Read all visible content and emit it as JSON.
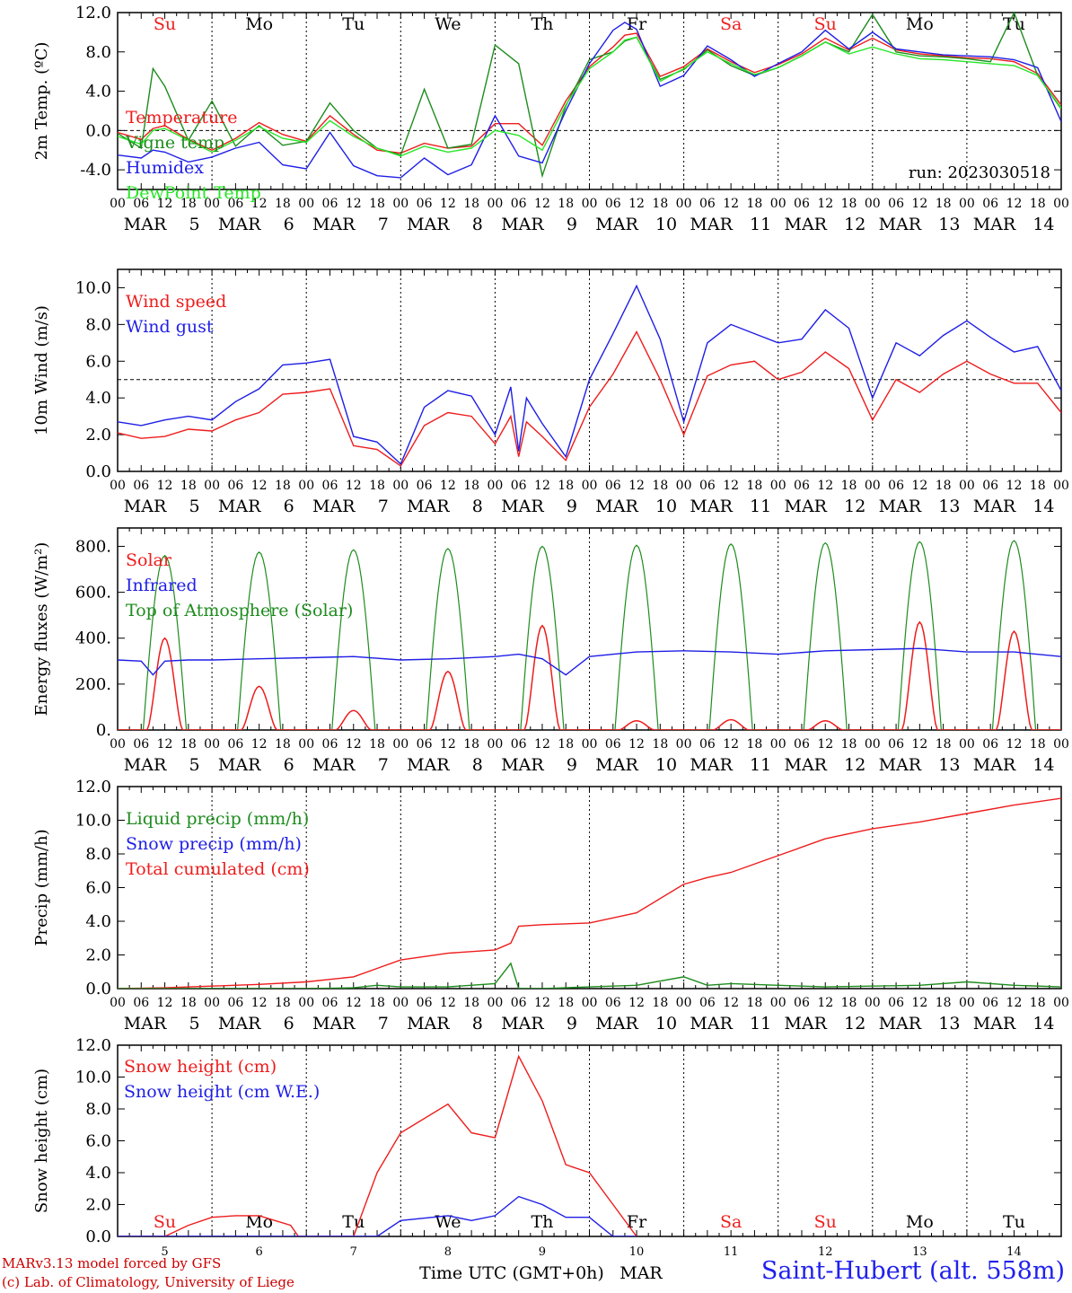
{
  "chart_data": [
    {
      "type": "line",
      "ylabel": "2m Temp. (ºC)",
      "ylim": [
        -6,
        12
      ],
      "yticks": [
        "-4.0",
        "0.0",
        "4.0",
        "8.0",
        "12.0"
      ],
      "hline": 0,
      "day_names": [
        "Su",
        "Mo",
        "Tu",
        "We",
        "Th",
        "Fr",
        "Sa",
        "Su",
        "Mo",
        "Tu"
      ],
      "day_colors": [
        "#ee2020",
        "#000000",
        "#000000",
        "#000000",
        "#000000",
        "#000000",
        "#ee2020",
        "#ee2020",
        "#000000",
        "#000000"
      ],
      "legend": [
        "Temperature",
        "Vigne temp",
        "Humidex",
        "DewPoint Temp"
      ],
      "run_label": "run: 2023030518",
      "x_hours": [
        0,
        6,
        9,
        12,
        18,
        24,
        30,
        36,
        42,
        48,
        54,
        60,
        66,
        72,
        78,
        84,
        90,
        96,
        102,
        108,
        114,
        120,
        126,
        129,
        132,
        138,
        144,
        150,
        156,
        162,
        168,
        174,
        180,
        186,
        192,
        198,
        204,
        210,
        216,
        222,
        228,
        234,
        240
      ],
      "series": [
        {
          "name": "Temperature",
          "color": "#ee1c1c",
          "values": [
            -0.2,
            -0.9,
            0.2,
            0.5,
            -0.9,
            -2.0,
            -0.8,
            0.8,
            -0.4,
            -1.1,
            1.5,
            -0.4,
            -2.0,
            -2.3,
            -1.3,
            -1.8,
            -1.6,
            0.7,
            0.7,
            -1.5,
            3.0,
            6.5,
            8.5,
            9.7,
            9.9,
            5.5,
            6.5,
            8.3,
            7.0,
            5.9,
            6.7,
            7.8,
            9.4,
            8.2,
            9.4,
            8.2,
            7.8,
            7.6,
            7.4,
            7.3,
            7.0,
            5.8,
            2.6
          ]
        },
        {
          "name": "Vigne temp",
          "color": "#1e8c1e",
          "values": [
            -0.3,
            -1.8,
            6.3,
            4.5,
            -1.0,
            3.0,
            -1.6,
            0.5,
            -1.5,
            -1.1,
            2.8,
            0.0,
            -1.8,
            -2.5,
            4.2,
            -1.8,
            -1.4,
            8.7,
            6.8,
            -4.6,
            2.5,
            7.2,
            8.0,
            9.1,
            9.5,
            5.2,
            6.2,
            8.2,
            6.6,
            5.6,
            6.4,
            7.6,
            9.0,
            8.0,
            11.8,
            8.0,
            7.6,
            7.5,
            7.3,
            7.0,
            12.0,
            5.6,
            2.2
          ]
        },
        {
          "name": "Humidex",
          "color": "#1e1ee6",
          "values": [
            -2.5,
            -2.8,
            -2.0,
            -2.2,
            -3.2,
            -2.7,
            -1.8,
            -1.2,
            -3.5,
            -3.9,
            -0.2,
            -3.6,
            -4.6,
            -4.8,
            -2.8,
            -4.5,
            -3.5,
            1.5,
            -2.6,
            -3.3,
            2.0,
            6.8,
            10.2,
            11.0,
            10.3,
            4.5,
            5.6,
            8.6,
            7.2,
            5.5,
            6.8,
            8.0,
            10.2,
            8.3,
            10.0,
            8.3,
            8.0,
            7.7,
            7.6,
            7.5,
            7.2,
            6.4,
            0.9
          ]
        },
        {
          "name": "DewPoint Temp",
          "color": "#26e626",
          "values": [
            -0.6,
            -1.4,
            0.0,
            0.2,
            -1.0,
            -2.2,
            -1.0,
            0.4,
            -0.8,
            -1.2,
            1.0,
            -0.6,
            -1.8,
            -2.6,
            -1.6,
            -2.2,
            -1.8,
            0.0,
            -0.5,
            -2.0,
            2.6,
            6.3,
            8.0,
            9.2,
            9.5,
            5.0,
            6.3,
            8.0,
            6.8,
            5.7,
            6.4,
            7.6,
            9.0,
            7.8,
            8.5,
            7.8,
            7.3,
            7.2,
            7.0,
            6.8,
            6.6,
            5.6,
            2.3
          ]
        }
      ]
    },
    {
      "type": "line",
      "ylabel": "10m Wind (m/s)",
      "ylim": [
        0,
        11
      ],
      "yticks": [
        "0.0",
        "2.0",
        "4.0",
        "6.0",
        "8.0",
        "10.0"
      ],
      "hline": 5,
      "legend": [
        "Wind speed",
        "Wind gust"
      ],
      "x_hours": [
        0,
        6,
        12,
        18,
        24,
        30,
        36,
        42,
        48,
        54,
        60,
        66,
        72,
        78,
        84,
        90,
        96,
        100,
        102,
        104,
        108,
        114,
        120,
        126,
        132,
        138,
        144,
        150,
        156,
        162,
        168,
        174,
        180,
        186,
        192,
        198,
        204,
        210,
        216,
        222,
        228,
        234,
        240
      ],
      "series": [
        {
          "name": "Wind speed",
          "color": "#ee1c1c",
          "values": [
            2.1,
            1.8,
            1.9,
            2.3,
            2.2,
            2.8,
            3.2,
            4.2,
            4.3,
            4.5,
            1.4,
            1.2,
            0.3,
            2.5,
            3.2,
            3.0,
            1.5,
            3.0,
            0.8,
            2.7,
            1.9,
            0.6,
            3.5,
            5.3,
            7.6,
            5.0,
            2.0,
            5.2,
            5.8,
            6.0,
            5.0,
            5.4,
            6.5,
            5.6,
            2.8,
            5.0,
            4.3,
            5.3,
            6.0,
            5.3,
            4.8,
            4.8,
            3.2
          ]
        },
        {
          "name": "Wind gust",
          "color": "#1e1ee6",
          "values": [
            2.7,
            2.5,
            2.8,
            3.0,
            2.8,
            3.8,
            4.5,
            5.8,
            5.9,
            6.1,
            1.9,
            1.6,
            0.4,
            3.5,
            4.4,
            4.1,
            2.0,
            4.6,
            1.1,
            4.0,
            2.6,
            0.8,
            5.0,
            7.5,
            10.1,
            7.2,
            2.7,
            7.0,
            8.0,
            7.5,
            7.0,
            7.2,
            8.8,
            7.8,
            4.0,
            7.0,
            6.3,
            7.4,
            8.2,
            7.3,
            6.5,
            6.8,
            4.4
          ]
        }
      ]
    },
    {
      "type": "line",
      "ylabel": "Energy fluxes (W/m²)",
      "ylim": [
        0,
        880
      ],
      "yticks": [
        "0.",
        "200.",
        "400.",
        "600.",
        "800."
      ],
      "legend": [
        "Solar",
        "Infrared",
        "Top of Atmosphere (Solar)"
      ],
      "toa_peaks": [
        760,
        775,
        785,
        790,
        800,
        805,
        810,
        815,
        820,
        825
      ],
      "solar_peaks": [
        400,
        190,
        85,
        255,
        455,
        40,
        45,
        40,
        470,
        430
      ],
      "series": [
        {
          "name": "Infrared",
          "color": "#1e1ee6",
          "x_hours": [
            0,
            6,
            9,
            12,
            18,
            24,
            36,
            48,
            60,
            72,
            84,
            96,
            102,
            108,
            114,
            120,
            132,
            144,
            156,
            168,
            180,
            192,
            204,
            216,
            228,
            240
          ],
          "values": [
            305,
            300,
            240,
            300,
            305,
            305,
            310,
            315,
            320,
            305,
            310,
            320,
            330,
            310,
            240,
            320,
            340,
            345,
            340,
            330,
            345,
            350,
            355,
            340,
            340,
            320
          ]
        }
      ]
    },
    {
      "type": "line",
      "ylabel": "Precip (mm/h)",
      "ylim": [
        0,
        12
      ],
      "yticks": [
        "0.0",
        "2.0",
        "4.0",
        "6.0",
        "8.0",
        "10.0",
        "12.0"
      ],
      "legend": [
        "Liquid precip (mm/h)",
        "Snow precip (mm/h)",
        "Total cumulated (cm)"
      ],
      "x_hours": [
        0,
        12,
        24,
        36,
        48,
        60,
        66,
        72,
        84,
        96,
        100,
        102,
        108,
        120,
        132,
        144,
        150,
        156,
        168,
        180,
        192,
        204,
        216,
        228,
        240
      ],
      "series": [
        {
          "name": "Total cumulated (cm)",
          "color": "#ee1c1c",
          "values": [
            0.0,
            0.05,
            0.15,
            0.25,
            0.4,
            0.7,
            1.2,
            1.7,
            2.1,
            2.3,
            2.7,
            3.7,
            3.8,
            3.9,
            4.5,
            6.2,
            6.6,
            6.9,
            7.9,
            8.9,
            9.5,
            9.9,
            10.4,
            10.9,
            11.3
          ]
        },
        {
          "name": "Liquid precip (mm/h)",
          "color": "#1e8c1e",
          "values": [
            0,
            0,
            0,
            0,
            0,
            0.05,
            0.2,
            0.1,
            0.1,
            0.3,
            1.5,
            0,
            0,
            0.1,
            0.2,
            0.7,
            0.2,
            0.3,
            0.2,
            0.1,
            0.15,
            0.2,
            0.4,
            0.2,
            0.1
          ]
        }
      ]
    },
    {
      "type": "line",
      "ylabel": "Snow height (cm)",
      "ylim": [
        0,
        12
      ],
      "yticks": [
        "0.0",
        "2.0",
        "4.0",
        "6.0",
        "8.0",
        "10.0",
        "12.0"
      ],
      "legend": [
        "Snow height (cm)",
        "Snow height (cm W.E.)"
      ],
      "day_names": [
        "Su",
        "Mo",
        "Tu",
        "We",
        "Th",
        "Fr",
        "Sa",
        "Su",
        "Mo",
        "Tu"
      ],
      "day_colors": [
        "#ee2020",
        "#000000",
        "#000000",
        "#000000",
        "#000000",
        "#000000",
        "#ee2020",
        "#ee2020",
        "#000000",
        "#000000"
      ],
      "x_hours": [
        0,
        12,
        18,
        24,
        30,
        36,
        44,
        46,
        50,
        60,
        66,
        72,
        84,
        90,
        96,
        102,
        108,
        114,
        120,
        126,
        132
      ],
      "series": [
        {
          "name": "Snow height (cm)",
          "color": "#ee1c1c",
          "values": [
            0,
            0,
            0.7,
            1.2,
            1.3,
            1.3,
            0.7,
            0,
            0,
            0,
            4.0,
            6.5,
            8.3,
            6.5,
            6.2,
            11.3,
            8.5,
            4.5,
            4.0,
            2.0,
            0
          ]
        },
        {
          "name": "Snow height (cm W.E.)",
          "color": "#1e1ee6",
          "values": [
            0,
            0,
            0,
            0,
            0,
            0,
            0,
            0,
            0,
            0,
            0,
            1.0,
            1.3,
            1.0,
            1.3,
            2.5,
            2.0,
            1.2,
            1.2,
            0,
            0
          ]
        }
      ]
    }
  ],
  "x_axis": {
    "hour_labels": [
      "00",
      "06",
      "12",
      "18"
    ],
    "final_label": "00",
    "date_month": "MAR",
    "dates": [
      "5",
      "6",
      "7",
      "8",
      "9",
      "10",
      "11",
      "12",
      "13",
      "14"
    ],
    "bottom_dates": [
      "5",
      "6",
      "7",
      "8",
      "9",
      "10",
      "11",
      "12",
      "13",
      "14"
    ],
    "xlabel": "Time UTC (GMT+0h)",
    "xlabel_month": "MAR"
  },
  "credits": {
    "line1": "MARv3.13 model forced by GFS",
    "line2": "(c) Lab. of Climatology, University of Liege"
  },
  "station": "Saint-Hubert (alt. 558m)"
}
